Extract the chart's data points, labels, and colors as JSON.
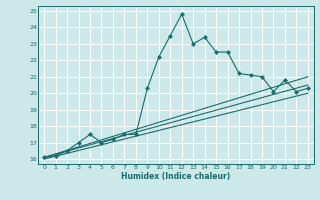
{
  "title": "",
  "xlabel": "Humidex (Indice chaleur)",
  "bg_color": "#cce8e8",
  "grid_color": "#ffffff",
  "line_color": "#1a6b6b",
  "xlim": [
    -0.5,
    23.5
  ],
  "ylim": [
    15.7,
    25.3
  ],
  "xticks": [
    0,
    1,
    2,
    3,
    4,
    5,
    6,
    7,
    8,
    9,
    10,
    11,
    12,
    13,
    14,
    15,
    16,
    17,
    18,
    19,
    20,
    21,
    22,
    23
  ],
  "yticks": [
    16,
    17,
    18,
    19,
    20,
    21,
    22,
    23,
    24,
    25
  ],
  "main_x": [
    0,
    1,
    2,
    3,
    4,
    5,
    6,
    7,
    8,
    9,
    10,
    11,
    12,
    13,
    14,
    15,
    16,
    17,
    18,
    19,
    20,
    21,
    22,
    23
  ],
  "main_y": [
    16.1,
    16.2,
    16.5,
    17.0,
    17.5,
    17.0,
    17.2,
    17.5,
    17.5,
    20.3,
    22.2,
    23.5,
    24.8,
    23.0,
    23.4,
    22.5,
    22.5,
    21.2,
    21.1,
    21.0,
    20.1,
    20.8,
    20.1,
    20.3
  ],
  "lines": [
    {
      "x": [
        0,
        23
      ],
      "y": [
        16.1,
        21.0
      ]
    },
    {
      "x": [
        0,
        23
      ],
      "y": [
        16.1,
        20.5
      ]
    },
    {
      "x": [
        0,
        23
      ],
      "y": [
        16.0,
        20.0
      ]
    }
  ]
}
